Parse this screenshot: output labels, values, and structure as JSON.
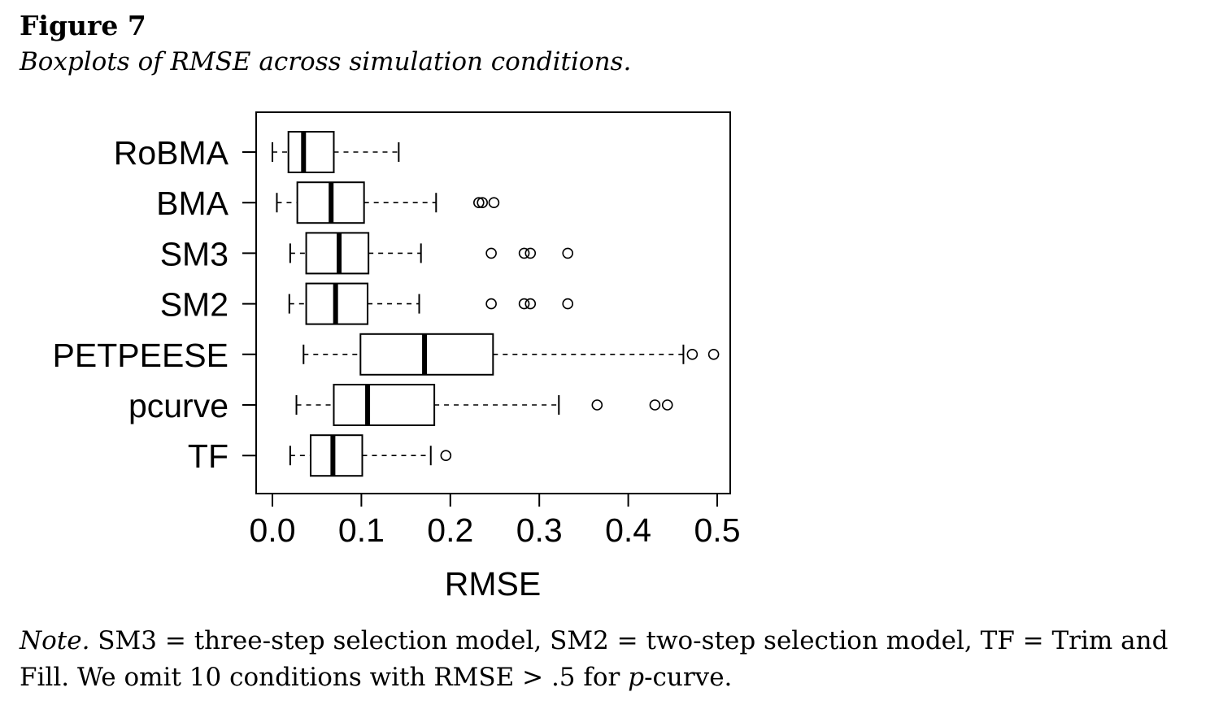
{
  "figure": {
    "label": "Figure 7",
    "caption": "Boxplots of RMSE across simulation conditions."
  },
  "note": {
    "lead": "Note.",
    "text_1": " SM3 = three-step selection model, SM2 = two-step selection model, TF = Trim and Fill. We omit 10 conditions with RMSE > .5 for ",
    "italic_p": "p",
    "text_2": "-curve."
  },
  "chart_data": {
    "type": "boxplot",
    "orientation": "horizontal",
    "xlabel": "RMSE",
    "ylabel": "",
    "xlim": [
      0.0,
      0.5
    ],
    "xticks": [
      "0.0",
      "0.1",
      "0.2",
      "0.3",
      "0.4",
      "0.5"
    ],
    "grid": false,
    "categories": [
      "RoBMA",
      "BMA",
      "SM3",
      "SM2",
      "PETPEESE",
      "pcurve",
      "TF"
    ],
    "boxes": [
      {
        "name": "RoBMA",
        "whisker_low": 0.0,
        "q1": 0.018,
        "median": 0.035,
        "q3": 0.069,
        "whisker_high": 0.142,
        "outliers": []
      },
      {
        "name": "BMA",
        "whisker_low": 0.005,
        "q1": 0.028,
        "median": 0.066,
        "q3": 0.103,
        "whisker_high": 0.184,
        "outliers": [
          0.232,
          0.236,
          0.249
        ]
      },
      {
        "name": "SM3",
        "whisker_low": 0.02,
        "q1": 0.038,
        "median": 0.075,
        "q3": 0.108,
        "whisker_high": 0.167,
        "outliers": [
          0.246,
          0.283,
          0.29,
          0.332
        ]
      },
      {
        "name": "SM2",
        "whisker_low": 0.019,
        "q1": 0.038,
        "median": 0.071,
        "q3": 0.107,
        "whisker_high": 0.165,
        "outliers": [
          0.246,
          0.283,
          0.29,
          0.332
        ]
      },
      {
        "name": "PETPEESE",
        "whisker_low": 0.035,
        "q1": 0.099,
        "median": 0.171,
        "q3": 0.248,
        "whisker_high": 0.462,
        "outliers": [
          0.472,
          0.496
        ]
      },
      {
        "name": "pcurve",
        "whisker_low": 0.027,
        "q1": 0.069,
        "median": 0.107,
        "q3": 0.182,
        "whisker_high": 0.322,
        "outliers": [
          0.365,
          0.43,
          0.444
        ]
      },
      {
        "name": "TF",
        "whisker_low": 0.02,
        "q1": 0.043,
        "median": 0.068,
        "q3": 0.101,
        "whisker_high": 0.178,
        "outliers": [
          0.195
        ]
      }
    ]
  }
}
